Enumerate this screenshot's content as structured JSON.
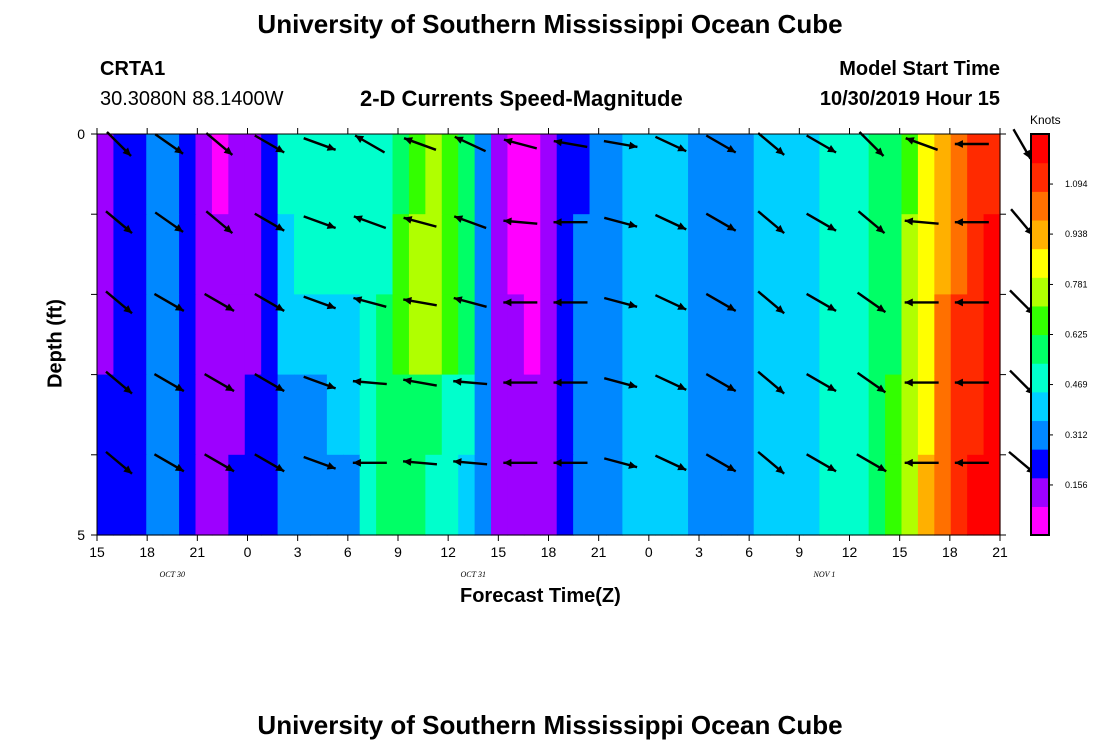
{
  "page": {
    "title_top": "University of Southern Mississippi Ocean Cube",
    "title_bottom": "University of Southern Mississippi Ocean Cube",
    "station": "CRTA1",
    "location": "30.3080N 88.1400W",
    "subtitle": "2-D Currents Speed-Magnitude",
    "model_start_label": "Model Start Time",
    "model_start_value": "10/30/2019 Hour 15"
  },
  "chart_data": {
    "type": "heatmap",
    "xlabel": "Forecast Time(Z)",
    "ylabel": "Depth (ft)",
    "y_ticks": [
      "0",
      "5"
    ],
    "ylim": [
      0,
      5
    ],
    "x_ticks": [
      "15",
      "18",
      "21",
      "0",
      "3",
      "6",
      "9",
      "12",
      "15",
      "18",
      "21",
      "0",
      "3",
      "6",
      "9",
      "12",
      "15",
      "18",
      "21"
    ],
    "day_labels": [
      "OCT 30",
      "OCT 31",
      "NOV 1"
    ],
    "colorbar_title": "Knots",
    "colorbar_ticks": [
      "1.094",
      "0.938",
      "0.781",
      "0.625",
      "0.469",
      "0.312",
      "0.156"
    ],
    "colorbar_tick_values": [
      1.094,
      0.938,
      0.781,
      0.625,
      0.469,
      0.312,
      0.156
    ],
    "color_range": [
      0,
      1.25
    ],
    "colors": [
      "#ff00ff",
      "#9d00ff",
      "#0000ff",
      "#0088ff",
      "#00d0ff",
      "#00ffcc",
      "#00ff66",
      "#33ff00",
      "#b0ff00",
      "#ffff00",
      "#ffb000",
      "#ff7000",
      "#ff2a00",
      "#ff0000"
    ],
    "depth_levels": 5,
    "time_hours_from_start": [
      0,
      1,
      2,
      3,
      4,
      5,
      6,
      7,
      8,
      9,
      10,
      11,
      12,
      13,
      14,
      15,
      16,
      17,
      18,
      19,
      20,
      21,
      22,
      23,
      24,
      25,
      26,
      27,
      28,
      29,
      30,
      31,
      32,
      33,
      34,
      35,
      36,
      37,
      38,
      39,
      40,
      41,
      42,
      43,
      44,
      45,
      46,
      47,
      48,
      49,
      50,
      51,
      52,
      53,
      54
    ],
    "speed_knots": [
      [
        0.16,
        0.22,
        0.25,
        0.3,
        0.34,
        0.2,
        0.12,
        0.06,
        0.1,
        0.15,
        0.2,
        0.45,
        0.5,
        0.52,
        0.52,
        0.5,
        0.49,
        0.47,
        0.62,
        0.68,
        0.72,
        0.7,
        0.58,
        0.3,
        0.1,
        0.05,
        0.02,
        0.1,
        0.2,
        0.25,
        0.3,
        0.33,
        0.36,
        0.4,
        0.38,
        0.36,
        0.35,
        0.34,
        0.33,
        0.34,
        0.36,
        0.38,
        0.4,
        0.44,
        0.46,
        0.48,
        0.5,
        0.55,
        0.6,
        0.7,
        0.85,
        0.95,
        1.0,
        1.1,
        1.15
      ],
      [
        0.16,
        0.22,
        0.25,
        0.32,
        0.3,
        0.18,
        0.1,
        0.1,
        0.12,
        0.15,
        0.22,
        0.4,
        0.45,
        0.45,
        0.46,
        0.45,
        0.48,
        0.5,
        0.68,
        0.72,
        0.75,
        0.7,
        0.55,
        0.3,
        0.12,
        0.08,
        0.05,
        0.12,
        0.22,
        0.28,
        0.3,
        0.33,
        0.36,
        0.4,
        0.38,
        0.36,
        0.34,
        0.34,
        0.33,
        0.34,
        0.36,
        0.38,
        0.4,
        0.44,
        0.46,
        0.48,
        0.5,
        0.55,
        0.62,
        0.72,
        0.85,
        0.98,
        1.05,
        1.12,
        1.18
      ],
      [
        0.16,
        0.22,
        0.25,
        0.3,
        0.32,
        0.2,
        0.12,
        0.12,
        0.14,
        0.15,
        0.22,
        0.38,
        0.4,
        0.4,
        0.42,
        0.44,
        0.5,
        0.55,
        0.7,
        0.72,
        0.72,
        0.65,
        0.55,
        0.32,
        0.14,
        0.1,
        0.08,
        0.14,
        0.24,
        0.3,
        0.32,
        0.34,
        0.36,
        0.4,
        0.38,
        0.36,
        0.34,
        0.34,
        0.33,
        0.34,
        0.36,
        0.38,
        0.4,
        0.44,
        0.46,
        0.48,
        0.5,
        0.56,
        0.62,
        0.72,
        0.86,
        1.0,
        1.08,
        1.15,
        1.2
      ],
      [
        0.18,
        0.22,
        0.25,
        0.28,
        0.3,
        0.2,
        0.14,
        0.14,
        0.16,
        0.18,
        0.22,
        0.32,
        0.34,
        0.35,
        0.36,
        0.4,
        0.5,
        0.58,
        0.62,
        0.6,
        0.55,
        0.5,
        0.45,
        0.3,
        0.15,
        0.12,
        0.1,
        0.15,
        0.25,
        0.3,
        0.32,
        0.34,
        0.36,
        0.4,
        0.38,
        0.36,
        0.34,
        0.34,
        0.33,
        0.34,
        0.36,
        0.38,
        0.4,
        0.44,
        0.46,
        0.48,
        0.5,
        0.56,
        0.64,
        0.74,
        0.88,
        1.02,
        1.1,
        1.16,
        1.22
      ],
      [
        0.18,
        0.22,
        0.25,
        0.28,
        0.3,
        0.22,
        0.16,
        0.16,
        0.18,
        0.2,
        0.22,
        0.28,
        0.28,
        0.28,
        0.3,
        0.32,
        0.45,
        0.55,
        0.58,
        0.56,
        0.52,
        0.48,
        0.42,
        0.28,
        0.15,
        0.12,
        0.1,
        0.16,
        0.26,
        0.3,
        0.32,
        0.34,
        0.36,
        0.4,
        0.38,
        0.36,
        0.34,
        0.34,
        0.33,
        0.34,
        0.36,
        0.38,
        0.4,
        0.44,
        0.46,
        0.48,
        0.5,
        0.56,
        0.66,
        0.76,
        0.9,
        1.04,
        1.12,
        1.18,
        1.24
      ]
    ],
    "vector_hours": [
      0,
      3,
      6,
      9,
      12,
      15,
      18,
      21,
      24,
      27,
      30,
      33,
      36,
      39,
      42,
      45,
      48,
      51,
      54
    ],
    "vector_angles_deg": [
      [
        45,
        35,
        40,
        30,
        20,
        210,
        200,
        205,
        195,
        190,
        10,
        25,
        30,
        40,
        30,
        45,
        200,
        180,
        60
      ],
      [
        40,
        35,
        40,
        30,
        20,
        200,
        195,
        200,
        185,
        180,
        15,
        25,
        30,
        40,
        30,
        40,
        185,
        180,
        50
      ],
      [
        40,
        30,
        30,
        30,
        20,
        195,
        190,
        195,
        180,
        180,
        15,
        25,
        30,
        40,
        30,
        35,
        180,
        180,
        45
      ],
      [
        40,
        30,
        30,
        30,
        20,
        185,
        190,
        185,
        180,
        180,
        15,
        25,
        30,
        40,
        30,
        35,
        180,
        180,
        45
      ],
      [
        40,
        30,
        30,
        30,
        20,
        180,
        185,
        185,
        180,
        180,
        15,
        25,
        30,
        40,
        30,
        30,
        180,
        180,
        40
      ]
    ]
  }
}
